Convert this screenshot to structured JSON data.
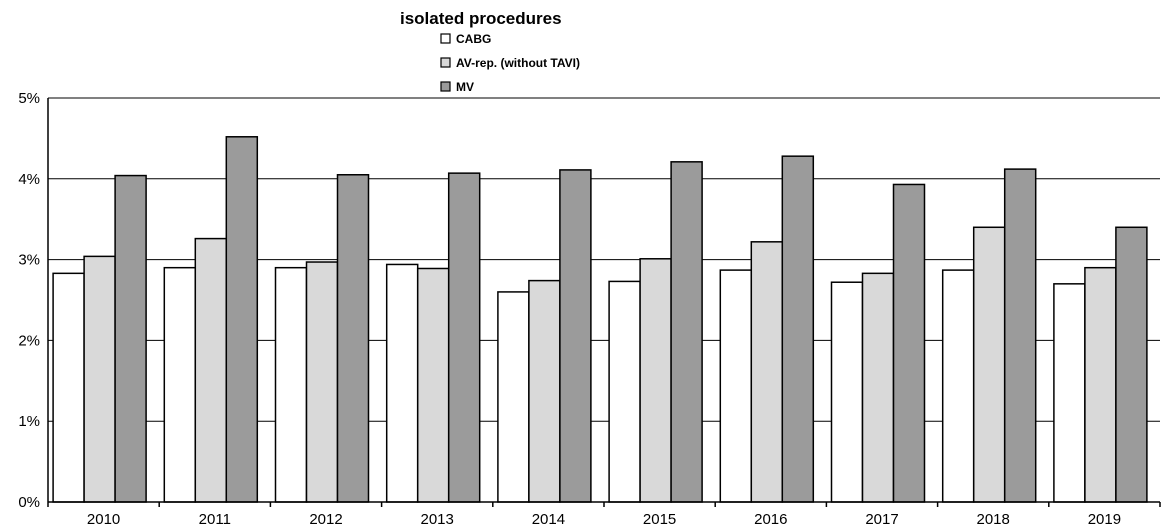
{
  "chart_data": {
    "type": "bar",
    "title": "isolated procedures",
    "xlabel": "",
    "ylabel": "",
    "categories": [
      "2010",
      "2011",
      "2012",
      "2013",
      "2014",
      "2015",
      "2016",
      "2017",
      "2018",
      "2019"
    ],
    "series": [
      {
        "name": "CABG",
        "color": "#ffffff",
        "values": [
          2.83,
          2.9,
          2.9,
          2.94,
          2.6,
          2.73,
          2.87,
          2.72,
          2.87,
          2.7
        ]
      },
      {
        "name": "AV-rep. (without TAVI)",
        "color": "#d9d9d9",
        "values": [
          3.04,
          3.26,
          2.97,
          2.89,
          2.74,
          3.01,
          3.22,
          2.83,
          3.4,
          2.9
        ]
      },
      {
        "name": "MV",
        "color": "#9b9b9b",
        "values": [
          4.04,
          4.52,
          4.05,
          4.07,
          4.11,
          4.21,
          4.28,
          3.93,
          4.12,
          3.4
        ]
      }
    ],
    "ylim": [
      0,
      5
    ],
    "yticks": [
      0,
      1,
      2,
      3,
      4,
      5
    ],
    "ytick_labels": [
      "0%",
      "1%",
      "2%",
      "3%",
      "4%",
      "5%"
    ],
    "grid": true,
    "legend_position": "top-center"
  }
}
